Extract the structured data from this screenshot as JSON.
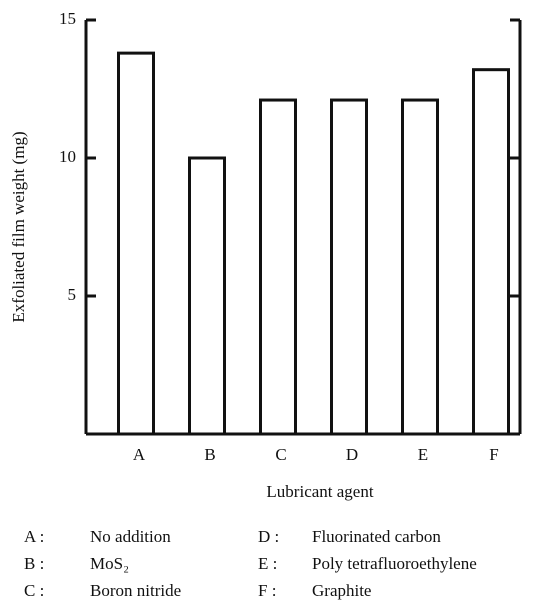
{
  "chart_data": {
    "type": "bar",
    "categories": [
      "A",
      "B",
      "C",
      "D",
      "E",
      "F"
    ],
    "values": [
      13.8,
      10.0,
      12.1,
      12.1,
      12.1,
      13.2
    ],
    "color": "#ffffff",
    "ylim": [
      0,
      15
    ],
    "yticks": [
      5,
      10,
      15
    ],
    "y_label": "Exfoliated film weight (mg)",
    "x_label": "Lubricant agent",
    "legend": [
      {
        "key": "A :",
        "label": "No addition"
      },
      {
        "key": "B :",
        "label": "MoS₂"
      },
      {
        "key": "C :",
        "label": "Boron nitride"
      },
      {
        "key": "D :",
        "label": "Fluorinated carbon"
      },
      {
        "key": "E :",
        "label": "Poly tetrafluoroethylene"
      },
      {
        "key": "F :",
        "label": "Graphite"
      }
    ]
  }
}
